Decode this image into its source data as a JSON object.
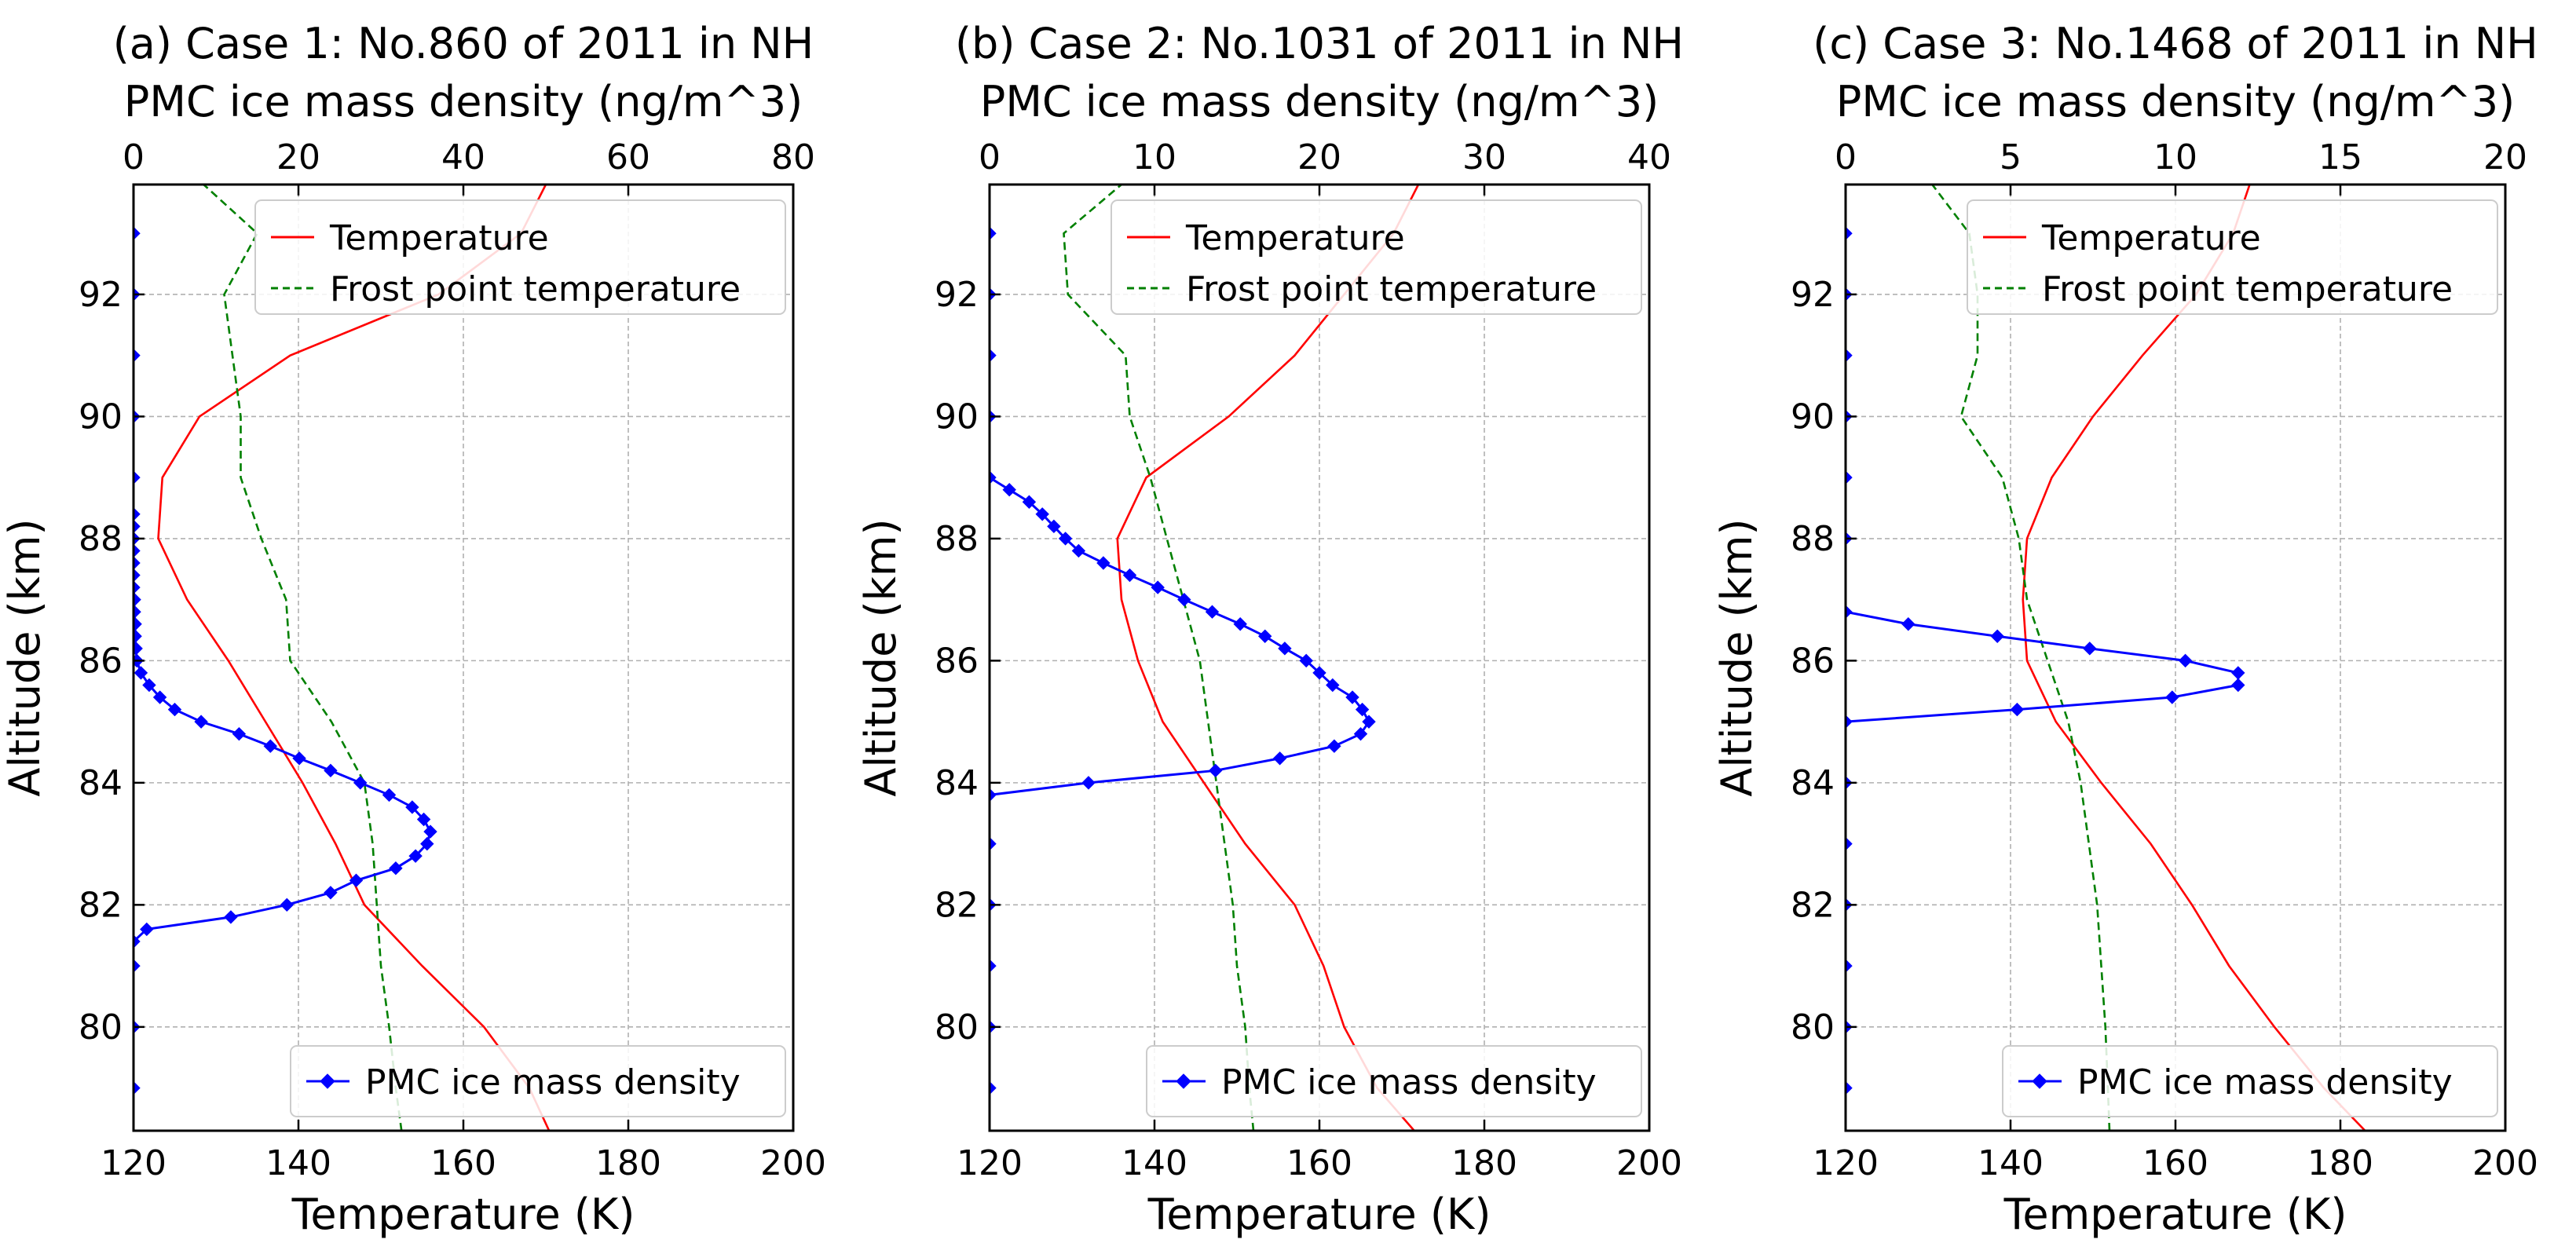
{
  "chart_data": [
    {
      "type": "line",
      "title": "(a) Case 1: No.860 of 2011 in NH",
      "top_xlabel": "PMC ice mass density (ng/m^3)",
      "xlabel": "Temperature (K)",
      "ylabel": "Altitude (km)",
      "xlim": [
        120,
        200
      ],
      "xticks": [
        "120",
        "140",
        "160",
        "180",
        "200"
      ],
      "top_xlim": [
        0,
        80
      ],
      "top_xticks": [
        "0",
        "20",
        "40",
        "60",
        "80"
      ],
      "ylim": [
        78.3,
        93.8
      ],
      "yticks": [
        "80",
        "82",
        "84",
        "86",
        "88",
        "90",
        "92"
      ],
      "grid": true,
      "legend_upper": {
        "placement": "top-right",
        "entries": [
          "Temperature",
          "Frost point temperature"
        ]
      },
      "legend_lower": {
        "placement": "bottom-right",
        "entries": [
          "PMC ice mass density"
        ]
      },
      "temperature": {
        "name": "Temperature",
        "color": "#ff0000",
        "points": [
          [
            170.4,
            78.3
          ],
          [
            168,
            79
          ],
          [
            162.5,
            80
          ],
          [
            155,
            81
          ],
          [
            148,
            82
          ],
          [
            144.5,
            83
          ],
          [
            140.5,
            84
          ],
          [
            136,
            85
          ],
          [
            131.5,
            86
          ],
          [
            126.5,
            87
          ],
          [
            123,
            88
          ],
          [
            123.5,
            89
          ],
          [
            128,
            90
          ],
          [
            139,
            91
          ],
          [
            157,
            92
          ],
          [
            167,
            93
          ],
          [
            170,
            93.8
          ]
        ]
      },
      "frost_point": {
        "name": "Frost point temperature",
        "color": "#008000",
        "points": [
          [
            152.5,
            78.3
          ],
          [
            151.8,
            79
          ],
          [
            151,
            80
          ],
          [
            150,
            81
          ],
          [
            149.5,
            82
          ],
          [
            149,
            83
          ],
          [
            148,
            84
          ],
          [
            144,
            85
          ],
          [
            139,
            86
          ],
          [
            138.5,
            87
          ],
          [
            135.5,
            88
          ],
          [
            133,
            89
          ],
          [
            133,
            90
          ],
          [
            132,
            91
          ],
          [
            131,
            92
          ],
          [
            135,
            93
          ],
          [
            128.5,
            93.8
          ]
        ]
      },
      "pmc_ice_mass_density": {
        "name": "PMC ice mass density",
        "color": "#0000ff",
        "points": [
          [
            0,
            79
          ],
          [
            0,
            80
          ],
          [
            0,
            81
          ],
          [
            0,
            81.4
          ],
          [
            1.6,
            81.6
          ],
          [
            11.8,
            81.8
          ],
          [
            18.6,
            82
          ],
          [
            23.9,
            82.2
          ],
          [
            27,
            82.4
          ],
          [
            31.8,
            82.6
          ],
          [
            34.2,
            82.8
          ],
          [
            35.6,
            83
          ],
          [
            36,
            83.2
          ],
          [
            35.2,
            83.4
          ],
          [
            33.8,
            83.6
          ],
          [
            31,
            83.8
          ],
          [
            27.5,
            84
          ],
          [
            23.9,
            84.2
          ],
          [
            20.1,
            84.4
          ],
          [
            16.6,
            84.6
          ],
          [
            12.8,
            84.8
          ],
          [
            8.2,
            85
          ],
          [
            5,
            85.2
          ],
          [
            3.2,
            85.4
          ],
          [
            1.9,
            85.6
          ],
          [
            0.9,
            85.8
          ],
          [
            0.4,
            86
          ],
          [
            0.3,
            86.2
          ],
          [
            0.2,
            86.4
          ],
          [
            0.2,
            86.6
          ],
          [
            0.1,
            86.8
          ],
          [
            0.1,
            87
          ],
          [
            0,
            87.2
          ],
          [
            0,
            87.4
          ],
          [
            0,
            87.6
          ],
          [
            0,
            87.8
          ],
          [
            0,
            88
          ],
          [
            0,
            88.2
          ],
          [
            0,
            88.4
          ],
          [
            0,
            89
          ],
          [
            0,
            90
          ],
          [
            0,
            91
          ],
          [
            0,
            92
          ],
          [
            0,
            93
          ]
        ]
      }
    },
    {
      "type": "line",
      "title": "(b) Case 2: No.1031 of 2011 in NH",
      "top_xlabel": "PMC ice mass density (ng/m^3)",
      "xlabel": "Temperature (K)",
      "ylabel": "Altitude (km)",
      "xlim": [
        120,
        200
      ],
      "xticks": [
        "120",
        "140",
        "160",
        "180",
        "200"
      ],
      "top_xlim": [
        0,
        40
      ],
      "top_xticks": [
        "0",
        "10",
        "20",
        "30",
        "40"
      ],
      "ylim": [
        78.3,
        93.8
      ],
      "yticks": [
        "80",
        "82",
        "84",
        "86",
        "88",
        "90",
        "92"
      ],
      "grid": true,
      "legend_upper": {
        "placement": "top-right",
        "entries": [
          "Temperature",
          "Frost point temperature"
        ]
      },
      "legend_lower": {
        "placement": "bottom-right",
        "entries": [
          "PMC ice mass density"
        ]
      },
      "temperature": {
        "name": "Temperature",
        "color": "#ff0000",
        "points": [
          [
            171.5,
            78.3
          ],
          [
            167,
            79
          ],
          [
            163,
            80
          ],
          [
            160.5,
            81
          ],
          [
            157,
            82
          ],
          [
            151,
            83
          ],
          [
            146,
            84
          ],
          [
            141,
            85
          ],
          [
            138,
            86
          ],
          [
            136,
            87
          ],
          [
            135.5,
            88
          ],
          [
            139,
            89
          ],
          [
            149,
            90
          ],
          [
            157,
            91
          ],
          [
            163,
            92
          ],
          [
            169,
            93
          ],
          [
            172,
            93.8
          ]
        ]
      },
      "frost_point": {
        "name": "Frost point temperature",
        "color": "#008000",
        "points": [
          [
            152,
            78.3
          ],
          [
            151.5,
            79
          ],
          [
            151,
            80
          ],
          [
            150,
            81
          ],
          [
            149.5,
            82
          ],
          [
            148.5,
            83
          ],
          [
            147.5,
            84
          ],
          [
            146.5,
            85
          ],
          [
            145.5,
            86
          ],
          [
            143.5,
            87
          ],
          [
            141.5,
            88
          ],
          [
            139.5,
            89
          ],
          [
            137,
            90
          ],
          [
            136.5,
            91
          ],
          [
            129.5,
            92
          ],
          [
            129,
            93
          ],
          [
            136,
            93.8
          ]
        ]
      },
      "pmc_ice_mass_density": {
        "name": "PMC ice mass density",
        "color": "#0000ff",
        "points": [
          [
            0,
            79
          ],
          [
            0,
            80
          ],
          [
            0,
            81
          ],
          [
            0,
            82
          ],
          [
            0,
            83
          ],
          [
            0,
            83.8
          ],
          [
            6,
            84
          ],
          [
            13.7,
            84.2
          ],
          [
            17.6,
            84.4
          ],
          [
            20.9,
            84.6
          ],
          [
            22.5,
            84.8
          ],
          [
            23,
            85
          ],
          [
            22.6,
            85.2
          ],
          [
            22,
            85.4
          ],
          [
            20.8,
            85.6
          ],
          [
            20,
            85.8
          ],
          [
            19.2,
            86
          ],
          [
            17.9,
            86.2
          ],
          [
            16.7,
            86.4
          ],
          [
            15.2,
            86.6
          ],
          [
            13.5,
            86.8
          ],
          [
            11.8,
            87
          ],
          [
            10.2,
            87.2
          ],
          [
            8.5,
            87.4
          ],
          [
            6.9,
            87.6
          ],
          [
            5.4,
            87.8
          ],
          [
            4.6,
            88
          ],
          [
            3.9,
            88.2
          ],
          [
            3.2,
            88.4
          ],
          [
            2.4,
            88.6
          ],
          [
            1.2,
            88.8
          ],
          [
            0,
            89
          ],
          [
            0,
            90
          ],
          [
            0,
            91
          ],
          [
            0,
            92
          ],
          [
            0,
            93
          ]
        ]
      }
    },
    {
      "type": "line",
      "title": "(c) Case 3: No.1468 of 2011 in NH",
      "top_xlabel": "PMC ice mass density (ng/m^3)",
      "xlabel": "Temperature (K)",
      "ylabel": "Altitude (km)",
      "xlim": [
        120,
        200
      ],
      "xticks": [
        "120",
        "140",
        "160",
        "180",
        "200"
      ],
      "top_xlim": [
        0,
        20
      ],
      "top_xticks": [
        "0",
        "5",
        "10",
        "15",
        "20"
      ],
      "ylim": [
        78.3,
        93.8
      ],
      "yticks": [
        "80",
        "82",
        "84",
        "86",
        "88",
        "90",
        "92"
      ],
      "grid": true,
      "legend_upper": {
        "placement": "top-right",
        "entries": [
          "Temperature",
          "Frost point temperature"
        ]
      },
      "legend_lower": {
        "placement": "bottom-right",
        "entries": [
          "PMC ice mass density"
        ]
      },
      "temperature": {
        "name": "Temperature",
        "color": "#ff0000",
        "points": [
          [
            183,
            78.3
          ],
          [
            178,
            79
          ],
          [
            172,
            80
          ],
          [
            166.5,
            81
          ],
          [
            162,
            82
          ],
          [
            157,
            83
          ],
          [
            151,
            84
          ],
          [
            145.5,
            85
          ],
          [
            142,
            86
          ],
          [
            141.5,
            87
          ],
          [
            142,
            88
          ],
          [
            145,
            89
          ],
          [
            150,
            90
          ],
          [
            156,
            91
          ],
          [
            162.5,
            92
          ],
          [
            167,
            93
          ],
          [
            169,
            93.8
          ]
        ]
      },
      "frost_point": {
        "name": "Frost point temperature",
        "color": "#008000",
        "points": [
          [
            152,
            78.3
          ],
          [
            151.8,
            79
          ],
          [
            151.5,
            80
          ],
          [
            151,
            81
          ],
          [
            150.5,
            82
          ],
          [
            149.5,
            83
          ],
          [
            148.5,
            84
          ],
          [
            147,
            85
          ],
          [
            144.5,
            86
          ],
          [
            142,
            87
          ],
          [
            141,
            88
          ],
          [
            139,
            89
          ],
          [
            134,
            90
          ],
          [
            136,
            91
          ],
          [
            136,
            92
          ],
          [
            135,
            93
          ],
          [
            130.5,
            93.8
          ]
        ]
      },
      "pmc_ice_mass_density": {
        "name": "PMC ice mass density",
        "color": "#0000ff",
        "points": [
          [
            0,
            79
          ],
          [
            0,
            80
          ],
          [
            0,
            81
          ],
          [
            0,
            82
          ],
          [
            0,
            83
          ],
          [
            0,
            84
          ],
          [
            0,
            85
          ],
          [
            5.2,
            85.2
          ],
          [
            9.9,
            85.4
          ],
          [
            11.9,
            85.6
          ],
          [
            11.9,
            85.8
          ],
          [
            10.3,
            86
          ],
          [
            7.4,
            86.2
          ],
          [
            4.6,
            86.4
          ],
          [
            1.9,
            86.6
          ],
          [
            0,
            86.8
          ],
          [
            0,
            88
          ],
          [
            0,
            89
          ],
          [
            0,
            90
          ],
          [
            0,
            91
          ],
          [
            0,
            92
          ],
          [
            0,
            93
          ]
        ]
      }
    }
  ]
}
